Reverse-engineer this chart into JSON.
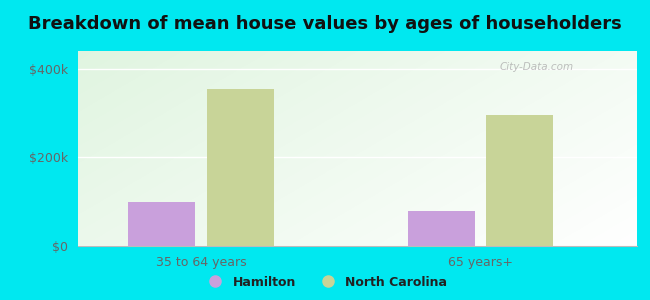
{
  "title": "Breakdown of mean house values by ages of householders",
  "categories": [
    "35 to 64 years",
    "65 years+"
  ],
  "hamilton_values": [
    100000,
    80000
  ],
  "nc_values": [
    355000,
    295000
  ],
  "hamilton_color": "#c9a0dc",
  "nc_color": "#c8d498",
  "background_color": "#00e8f0",
  "ylim": [
    0,
    440000
  ],
  "yticks": [
    0,
    200000,
    400000
  ],
  "ytick_labels": [
    "$0",
    "$200k",
    "$400k"
  ],
  "bar_width": 0.12,
  "legend_labels": [
    "Hamilton",
    "North Carolina"
  ],
  "watermark": "City-Data.com",
  "title_fontsize": 13,
  "tick_fontsize": 9,
  "legend_fontsize": 9,
  "group_positions": [
    0.22,
    0.72
  ],
  "xlim": [
    0.0,
    1.0
  ]
}
